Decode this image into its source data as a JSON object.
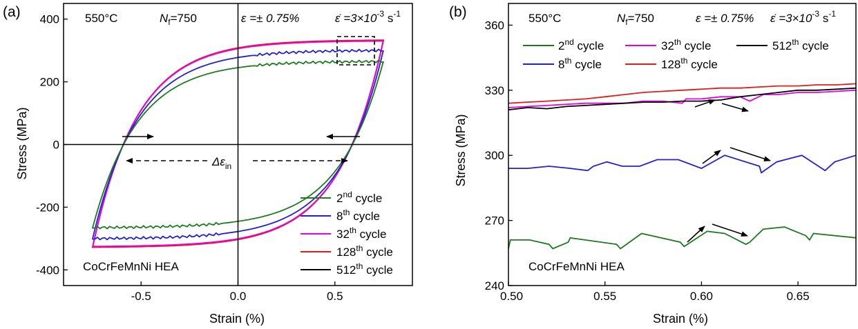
{
  "chart_data": [
    {
      "panel_label": "(a)",
      "type": "line",
      "xlabel": "Strain (%)",
      "ylabel": "Stress (MPa)",
      "xlim": [
        -0.9,
        0.9
      ],
      "ylim": [
        -450,
        450
      ],
      "xticks": [
        -0.5,
        0.0,
        0.5
      ],
      "xtick_labels": [
        "-0.5",
        "0.0",
        "0.5"
      ],
      "yticks": [
        -400,
        -200,
        0,
        200,
        400
      ],
      "ytick_labels": [
        "-400",
        "-200",
        "0",
        "200",
        "400"
      ],
      "grid": false,
      "annotations": {
        "temperature": "550°C",
        "nf_symbol": "N",
        "nf_sub": "f",
        "nf_value": "=750",
        "strain_amp": "ε =± 0.75%",
        "strain_rate_sym": "ε̇ =3×10",
        "strain_rate_exp": "-3",
        "strain_rate_unit": " s",
        "strain_rate_unit_exp": "-1",
        "delta_sym": "Δε",
        "delta_sub": "in",
        "material": "CoCrFeMnNi HEA"
      },
      "legend": {
        "placement": "bottom-right",
        "entries": [
          {
            "num": "2",
            "sup": "nd",
            "text": " cycle",
            "color": "#1e7a1e"
          },
          {
            "num": "8",
            "sup": "th",
            "text": " cycle",
            "color": "#1f1fd6"
          },
          {
            "num": "32",
            "sup": "th",
            "text": " cycle",
            "color": "#e600e6"
          },
          {
            "num": "128",
            "sup": "th",
            "text": " cycle",
            "color": "#e41a1a"
          },
          {
            "num": "512",
            "sup": "th",
            "text": " cycle",
            "color": "#000000"
          }
        ]
      },
      "series": [
        {
          "name": "2nd cycle",
          "color": "#1e7a1e",
          "peak_tension": 265,
          "peak_compression": -265,
          "zero_stress_strains": [
            -0.6,
            0.58
          ],
          "serrated": true
        },
        {
          "name": "8th cycle",
          "color": "#1f1fd6",
          "peak_tension": 300,
          "peak_compression": -300,
          "zero_stress_strains": [
            -0.57,
            0.55
          ],
          "serrated": true
        },
        {
          "name": "32th cycle",
          "color": "#e600e6",
          "peak_tension": 330,
          "peak_compression": -325,
          "zero_stress_strains": [
            -0.54,
            0.53
          ],
          "serrated": false
        },
        {
          "name": "128th cycle",
          "color": "#e41a1a",
          "peak_tension": 333,
          "peak_compression": -328,
          "zero_stress_strains": [
            -0.53,
            0.52
          ],
          "serrated": false
        },
        {
          "name": "512th cycle",
          "color": "#000000",
          "peak_tension": 332,
          "peak_compression": -327,
          "zero_stress_strains": [
            -0.53,
            0.52
          ],
          "serrated": false
        }
      ]
    },
    {
      "panel_label": "(b)",
      "type": "line",
      "xlabel": "Strain (%)",
      "ylabel": "Stress (MPa)",
      "xlim": [
        0.5,
        0.68
      ],
      "ylim": [
        240,
        370
      ],
      "xticks": [
        0.5,
        0.55,
        0.6,
        0.65
      ],
      "xtick_labels": [
        "0.50",
        "0.55",
        "0.60",
        "0.65"
      ],
      "yticks": [
        240,
        270,
        300,
        330,
        360
      ],
      "ytick_labels": [
        "240",
        "270",
        "300",
        "330",
        "360"
      ],
      "grid": false,
      "annotations": {
        "temperature": "550°C",
        "nf_symbol": "N",
        "nf_sub": "f",
        "nf_value": "=750",
        "strain_amp": "ε =± 0.75%",
        "strain_rate_sym": "ε̇ =3×10",
        "strain_rate_exp": "-3",
        "strain_rate_unit": " s",
        "strain_rate_unit_exp": "-1",
        "material": "CoCrFeMnNi HEA"
      },
      "legend": {
        "placement": "top",
        "entries": [
          {
            "num": "2",
            "sup": "nd",
            "text": " cycle",
            "color": "#1e7a1e"
          },
          {
            "num": "32",
            "sup": "th",
            "text": " cycle",
            "color": "#e600e6"
          },
          {
            "num": "512",
            "sup": "th",
            "text": " cycle",
            "color": "#000000"
          },
          {
            "num": "8",
            "sup": "th",
            "text": " cycle",
            "color": "#1f1fd6"
          },
          {
            "num": "128",
            "sup": "th",
            "text": " cycle",
            "color": "#e41a1a"
          }
        ]
      },
      "series": [
        {
          "name": "2nd cycle",
          "color": "#1e7a1e",
          "x": [
            0.5,
            0.501,
            0.511,
            0.521,
            0.523,
            0.531,
            0.532,
            0.556,
            0.558,
            0.569,
            0.589,
            0.591,
            0.603,
            0.612,
            0.623,
            0.625,
            0.632,
            0.643,
            0.654,
            0.656,
            0.658,
            0.68
          ],
          "y": [
            257,
            261,
            261,
            259,
            257,
            260,
            262,
            259,
            257,
            264,
            260,
            258,
            265,
            264,
            259,
            260,
            266,
            267,
            263,
            261,
            264,
            262
          ]
        },
        {
          "name": "8th cycle",
          "color": "#1f1fd6",
          "x": [
            0.5,
            0.51,
            0.521,
            0.532,
            0.541,
            0.544,
            0.551,
            0.559,
            0.568,
            0.577,
            0.588,
            0.6,
            0.612,
            0.63,
            0.631,
            0.639,
            0.652,
            0.664,
            0.669,
            0.68
          ],
          "y": [
            294,
            294,
            295,
            294,
            293,
            295,
            297,
            295,
            295,
            298,
            298,
            294,
            300,
            295,
            292,
            297,
            300,
            293,
            297,
            300
          ]
        },
        {
          "name": "32th cycle",
          "color": "#e600e6",
          "x": [
            0.5,
            0.52,
            0.54,
            0.56,
            0.57,
            0.58,
            0.59,
            0.592,
            0.6,
            0.61,
            0.62,
            0.625,
            0.632,
            0.64,
            0.65,
            0.66,
            0.68
          ],
          "y": [
            322,
            323,
            324,
            324,
            325,
            325,
            324,
            326,
            326,
            327,
            327,
            325,
            328,
            328,
            329,
            329,
            330
          ]
        },
        {
          "name": "128th cycle",
          "color": "#e41a1a",
          "x": [
            0.5,
            0.51,
            0.52,
            0.53,
            0.54,
            0.55,
            0.56,
            0.57,
            0.58,
            0.59,
            0.6,
            0.61,
            0.62,
            0.63,
            0.64,
            0.65,
            0.66,
            0.67,
            0.68
          ],
          "y": [
            324,
            324.5,
            325,
            325.5,
            326,
            327,
            328,
            329,
            329.5,
            330,
            330.5,
            331,
            331,
            331.5,
            332,
            332,
            332.5,
            332.5,
            333
          ]
        },
        {
          "name": "512th cycle",
          "color": "#000000",
          "x": [
            0.5,
            0.51,
            0.52,
            0.53,
            0.54,
            0.55,
            0.56,
            0.57,
            0.58,
            0.59,
            0.6,
            0.61,
            0.62,
            0.63,
            0.64,
            0.65,
            0.66,
            0.67,
            0.68
          ],
          "y": [
            321,
            322,
            321.5,
            322.5,
            323,
            323.5,
            324,
            324.5,
            324.5,
            325,
            325,
            325.5,
            327,
            328,
            329,
            330,
            330,
            330.5,
            331
          ]
        }
      ]
    }
  ]
}
